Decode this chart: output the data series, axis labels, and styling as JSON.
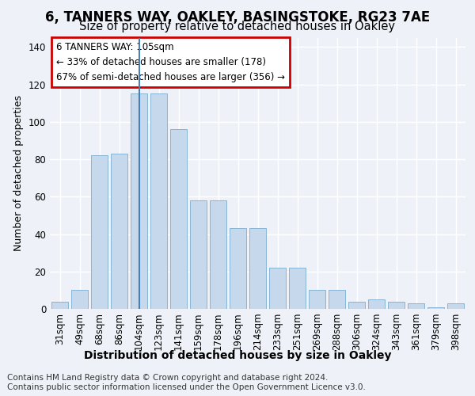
{
  "title1": "6, TANNERS WAY, OAKLEY, BASINGSTOKE, RG23 7AE",
  "title2": "Size of property relative to detached houses in Oakley",
  "xlabel": "Distribution of detached houses by size in Oakley",
  "ylabel": "Number of detached properties",
  "categories": [
    "31sqm",
    "49sqm",
    "68sqm",
    "86sqm",
    "104sqm",
    "123sqm",
    "141sqm",
    "159sqm",
    "178sqm",
    "196sqm",
    "214sqm",
    "233sqm",
    "251sqm",
    "269sqm",
    "288sqm",
    "306sqm",
    "324sqm",
    "343sqm",
    "361sqm",
    "379sqm",
    "398sqm"
  ],
  "bar_values": [
    4,
    10,
    82,
    83,
    115,
    115,
    96,
    58,
    58,
    43,
    43,
    22,
    22,
    10,
    10,
    4,
    5,
    4,
    3,
    1,
    3
  ],
  "bar_color": "#c5d8ec",
  "bar_edge_color": "#7aaed0",
  "vline_index": 4,
  "vline_color": "#4a7fb5",
  "annotation_line1": "6 TANNERS WAY: 105sqm",
  "annotation_line2": "← 33% of detached houses are smaller (178)",
  "annotation_line3": "67% of semi-detached houses are larger (356) →",
  "annotation_box_facecolor": "#ffffff",
  "annotation_box_edgecolor": "#cc0000",
  "ylim": [
    0,
    145
  ],
  "yticks": [
    0,
    20,
    40,
    60,
    80,
    100,
    120,
    140
  ],
  "footer1": "Contains HM Land Registry data © Crown copyright and database right 2024.",
  "footer2": "Contains public sector information licensed under the Open Government Licence v3.0.",
  "background_color": "#eef2f8",
  "plot_bg_color": "#eef2f8",
  "grid_color": "#ffffff",
  "title1_fontsize": 12,
  "title2_fontsize": 10.5,
  "xlabel_fontsize": 10,
  "ylabel_fontsize": 9,
  "tick_fontsize": 8.5,
  "annotation_fontsize": 8.5,
  "footer_fontsize": 7.5
}
